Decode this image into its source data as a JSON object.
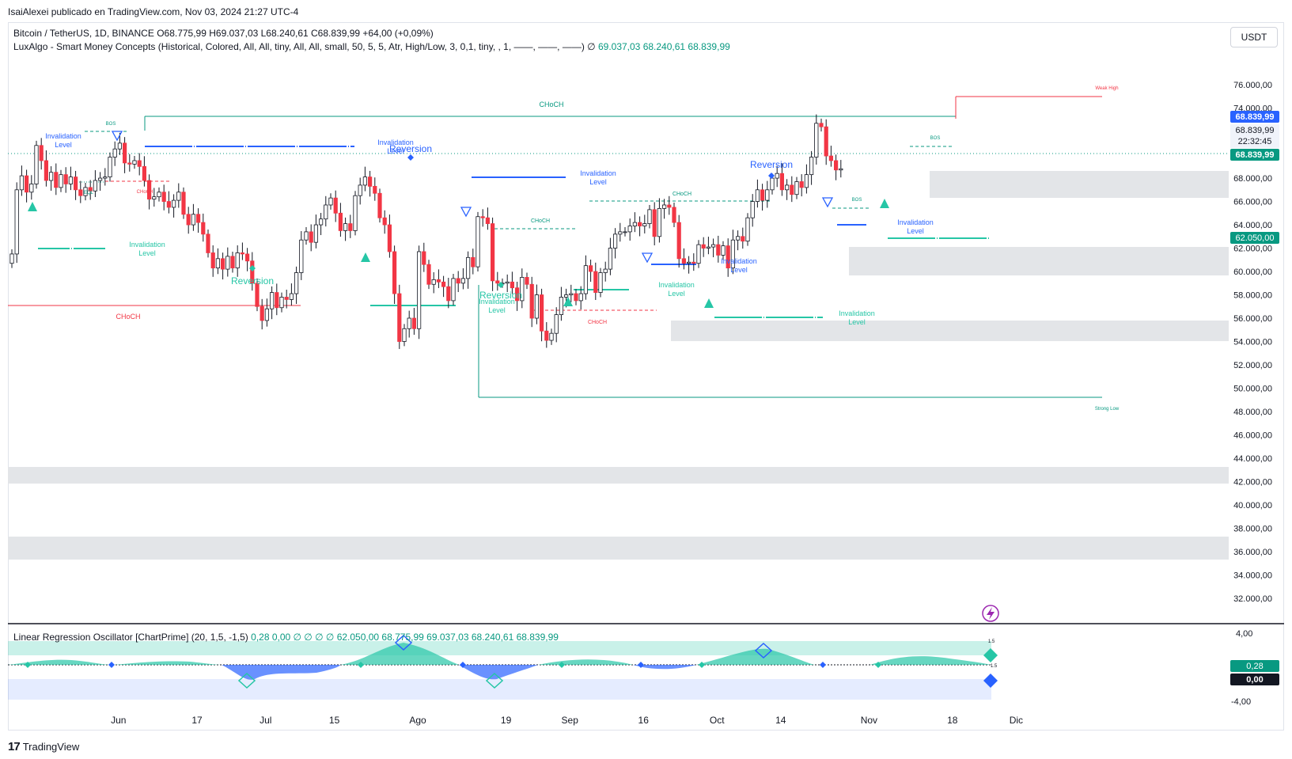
{
  "publisher": "IsaiAlexei publicado en TradingView.com, Nov 03, 2024 21:27 UTC-4",
  "header": {
    "symbol": "Bitcoin / TetherUS, 1D, BINANCE",
    "ohlc": "O68.775,99  H69.037,03  L68.240,61  C68.839,99  +64,00 (+0,09%)",
    "indicator": "LuxAlgo - Smart Money Concepts (Historical, Colored, All, All, tiny, All, All, small, 50, 5, 5, Atr, High/Low, 3, 0,1, tiny, , 1, ——, ——, ——)  ∅",
    "indicator_values": "69.037,03   68.240,61   68.839,99"
  },
  "currency_button": "USDT",
  "price_badges": {
    "current": "68.839,99",
    "close_label": "68.839,99",
    "countdown": "22:32:45",
    "last": "68.839,99",
    "level": "62.050,00"
  },
  "oscillator": {
    "title": "Linear Regression Oscillator [ChartPrime] (20, 1,5, -1,5)",
    "values_a": "0,28  0,00  ∅  ∅  ∅  ∅",
    "level_value": "62.050,00",
    "values_b": "68.775,99   69.037,03   68.240,61   68.839,99",
    "axis": [
      "4,00",
      "-4,00"
    ],
    "badge_pos": "0,28",
    "badge_zero": "0,00",
    "band_label_top": "1.5",
    "band_label_mid": "1.5"
  },
  "labels": {
    "choch": "CHoCH",
    "bos": "BOS",
    "eql": "EQL",
    "invalidation": "Invalidation",
    "level": "Level",
    "reversion": "Reversion",
    "weak_high": "Weak High",
    "strong_low": "Strong Low"
  },
  "branding": "TradingView",
  "colors": {
    "up": "#089981",
    "down": "#f23645",
    "accent_blue": "#2962ff",
    "zone_gray": "#e3e5e8",
    "osc_teal": "#26c6a6",
    "osc_blue": "#2962ff"
  },
  "chart_data": {
    "type": "candlestick",
    "symbol": "Bitcoin / TetherUS",
    "timeframe": "1D",
    "ylim": [
      30500,
      77500
    ],
    "y_ticks": [
      32000,
      34000,
      36000,
      38000,
      40000,
      42000,
      44000,
      46000,
      48000,
      50000,
      52000,
      54000,
      56000,
      58000,
      60000,
      62000,
      64000,
      66000,
      68000,
      70000,
      72000,
      74000,
      76000
    ],
    "y_tick_labels": [
      "32.000,00",
      "34.000,00",
      "36.000,00",
      "38.000,00",
      "40.000,00",
      "42.000,00",
      "44.000,00",
      "46.000,00",
      "48.000,00",
      "50.000,00",
      "52.000,00",
      "54.000,00",
      "56.000,00",
      "58.000,00",
      "60.000,00",
      "62.000,00",
      "64.000,00",
      "66.000,00",
      "68.000,00",
      "70.000,00",
      "72.000,00",
      "74.000,00",
      "76.000,00"
    ],
    "x_tick_labels": [
      "Jun",
      "17",
      "Jul",
      "15",
      "Ago",
      "19",
      "Sep",
      "16",
      "Oct",
      "14",
      "Nov",
      "18",
      "Dic"
    ],
    "x_tick_days": [
      4,
      20,
      34,
      48,
      65,
      83,
      96,
      111,
      126,
      139,
      157,
      174,
      187
    ],
    "closes": [
      61500,
      67000,
      68200,
      66800,
      67500,
      70800,
      69500,
      67800,
      68500,
      67200,
      68300,
      67500,
      68100,
      67000,
      66500,
      67200,
      66900,
      67800,
      68000,
      68100,
      69800,
      70500,
      71000,
      69300,
      69200,
      69500,
      69000,
      67800,
      66200,
      66400,
      66800,
      66000,
      65500,
      66100,
      66800,
      64900,
      64000,
      64900,
      64200,
      63200,
      61600,
      60300,
      61100,
      60200,
      61300,
      60300,
      61600,
      61500,
      60900,
      59000,
      57000,
      55800,
      56800,
      58200,
      56900,
      57800,
      57600,
      58100,
      59900,
      62700,
      63400,
      62500,
      64000,
      64500,
      65700,
      66300,
      65000,
      63500,
      64100,
      63500,
      66500,
      67400,
      68100,
      67300,
      66700,
      64600,
      64000,
      61700,
      58100,
      54000,
      55100,
      56000,
      55100,
      61700,
      60600,
      58900,
      59300,
      59100,
      58700,
      57500,
      59400,
      59000,
      59400,
      61200,
      60400,
      64700,
      64600,
      64100,
      59200,
      59000,
      59000,
      59100,
      58600,
      57500,
      59500,
      58900,
      56000,
      58000,
      54900,
      54100,
      54700,
      56300,
      57800,
      58000,
      58100,
      57500,
      58100,
      60500,
      60000,
      58200,
      59900,
      60200,
      62000,
      63200,
      63400,
      63400,
      63900,
      64200,
      63900,
      64100,
      65300,
      63000,
      65400,
      65700,
      65500,
      64200,
      61100,
      60700,
      60800,
      60700,
      62300,
      62000,
      62100,
      62300,
      61400,
      62200,
      60300,
      62700,
      63000,
      62600,
      64600,
      66000,
      67000,
      66100,
      67000,
      68000,
      68400,
      67000,
      67400,
      66600,
      67700,
      67200,
      68300,
      69800,
      72700,
      72400,
      69900,
      69500,
      68700,
      68800
    ]
  }
}
